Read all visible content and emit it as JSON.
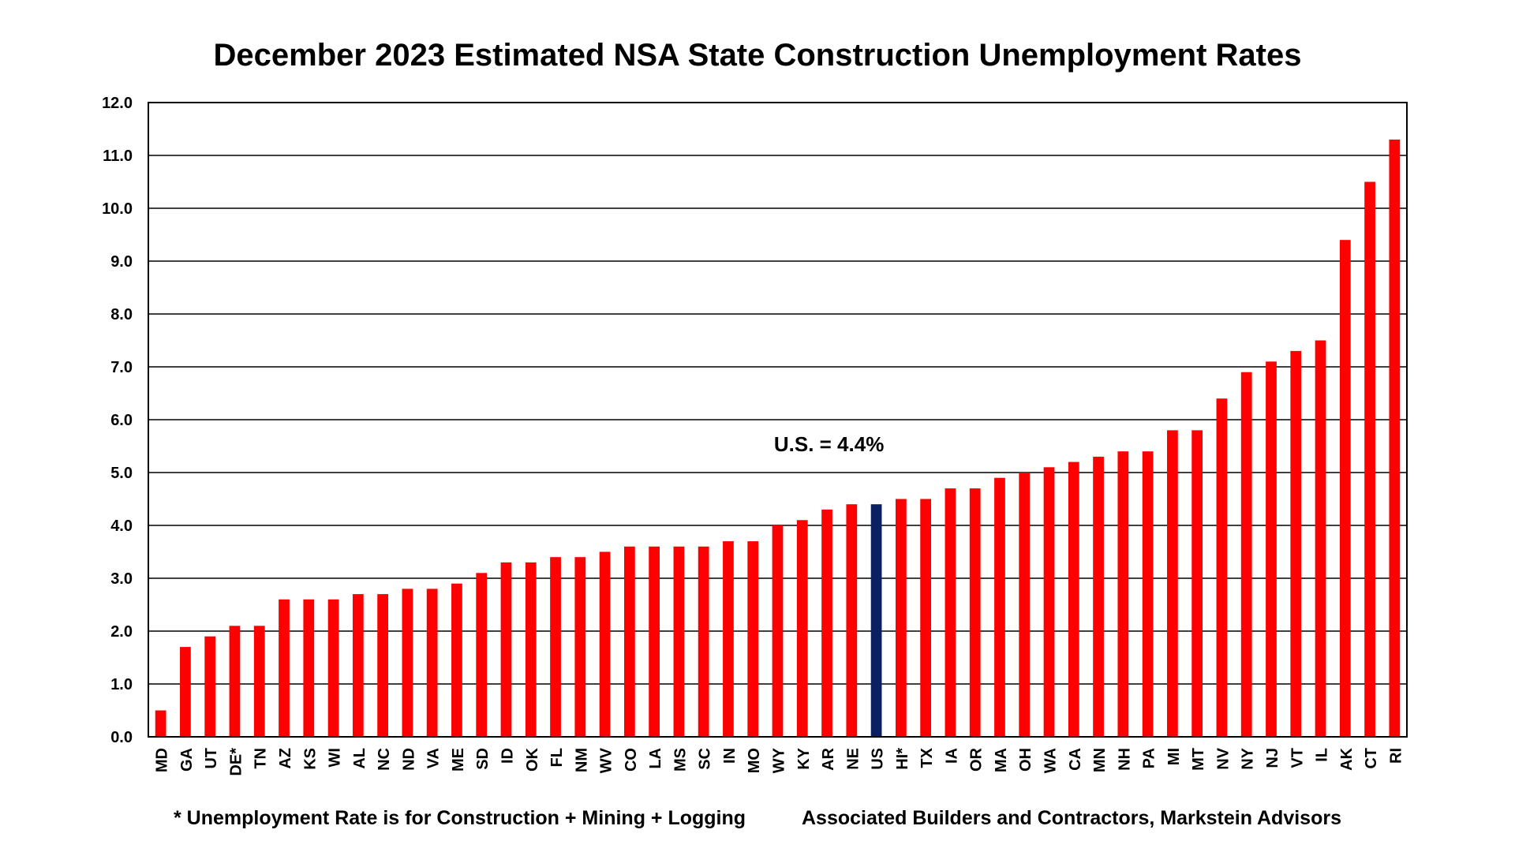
{
  "chart_data": {
    "type": "bar",
    "title": "December 2023 Estimated NSA State Construction Unemployment Rates",
    "xlabel": "",
    "ylabel": "",
    "ylim": [
      0,
      12
    ],
    "yticks": [
      "0.0",
      "1.0",
      "2.0",
      "3.0",
      "4.0",
      "5.0",
      "6.0",
      "7.0",
      "8.0",
      "9.0",
      "10.0",
      "11.0",
      "12.0"
    ],
    "grid": true,
    "categories": [
      "MD",
      "GA",
      "UT",
      "DE*",
      "TN",
      "AZ",
      "KS",
      "WI",
      "AL",
      "NC",
      "ND",
      "VA",
      "ME",
      "SD",
      "ID",
      "OK",
      "FL",
      "NM",
      "WV",
      "CO",
      "LA",
      "MS",
      "SC",
      "IN",
      "MO",
      "WY",
      "KY",
      "AR",
      "NE",
      "US",
      "HI*",
      "TX",
      "IA",
      "OR",
      "MA",
      "OH",
      "WA",
      "CA",
      "MN",
      "NH",
      "PA",
      "MI",
      "MT",
      "NV",
      "NY",
      "NJ",
      "VT",
      "IL",
      "AK",
      "CT",
      "RI"
    ],
    "values": [
      0.5,
      1.7,
      1.9,
      2.1,
      2.1,
      2.6,
      2.6,
      2.6,
      2.7,
      2.7,
      2.8,
      2.8,
      2.9,
      3.1,
      3.3,
      3.3,
      3.4,
      3.4,
      3.5,
      3.6,
      3.6,
      3.6,
      3.6,
      3.7,
      3.7,
      4.0,
      4.1,
      4.3,
      4.4,
      4.4,
      4.5,
      4.5,
      4.7,
      4.7,
      4.9,
      5.0,
      5.1,
      5.2,
      5.3,
      5.4,
      5.4,
      5.8,
      5.8,
      6.4,
      6.9,
      7.1,
      7.3,
      7.5,
      9.4,
      10.5,
      11.3
    ],
    "highlight_category": "US",
    "bar_color": "#FF0000",
    "highlight_color": "#0B2060",
    "annotation": "U.S. = 4.4%"
  },
  "footnotes": {
    "left": "* Unemployment Rate is for Construction + Mining + Logging",
    "right": "Associated Builders and Contractors, Markstein Advisors"
  }
}
